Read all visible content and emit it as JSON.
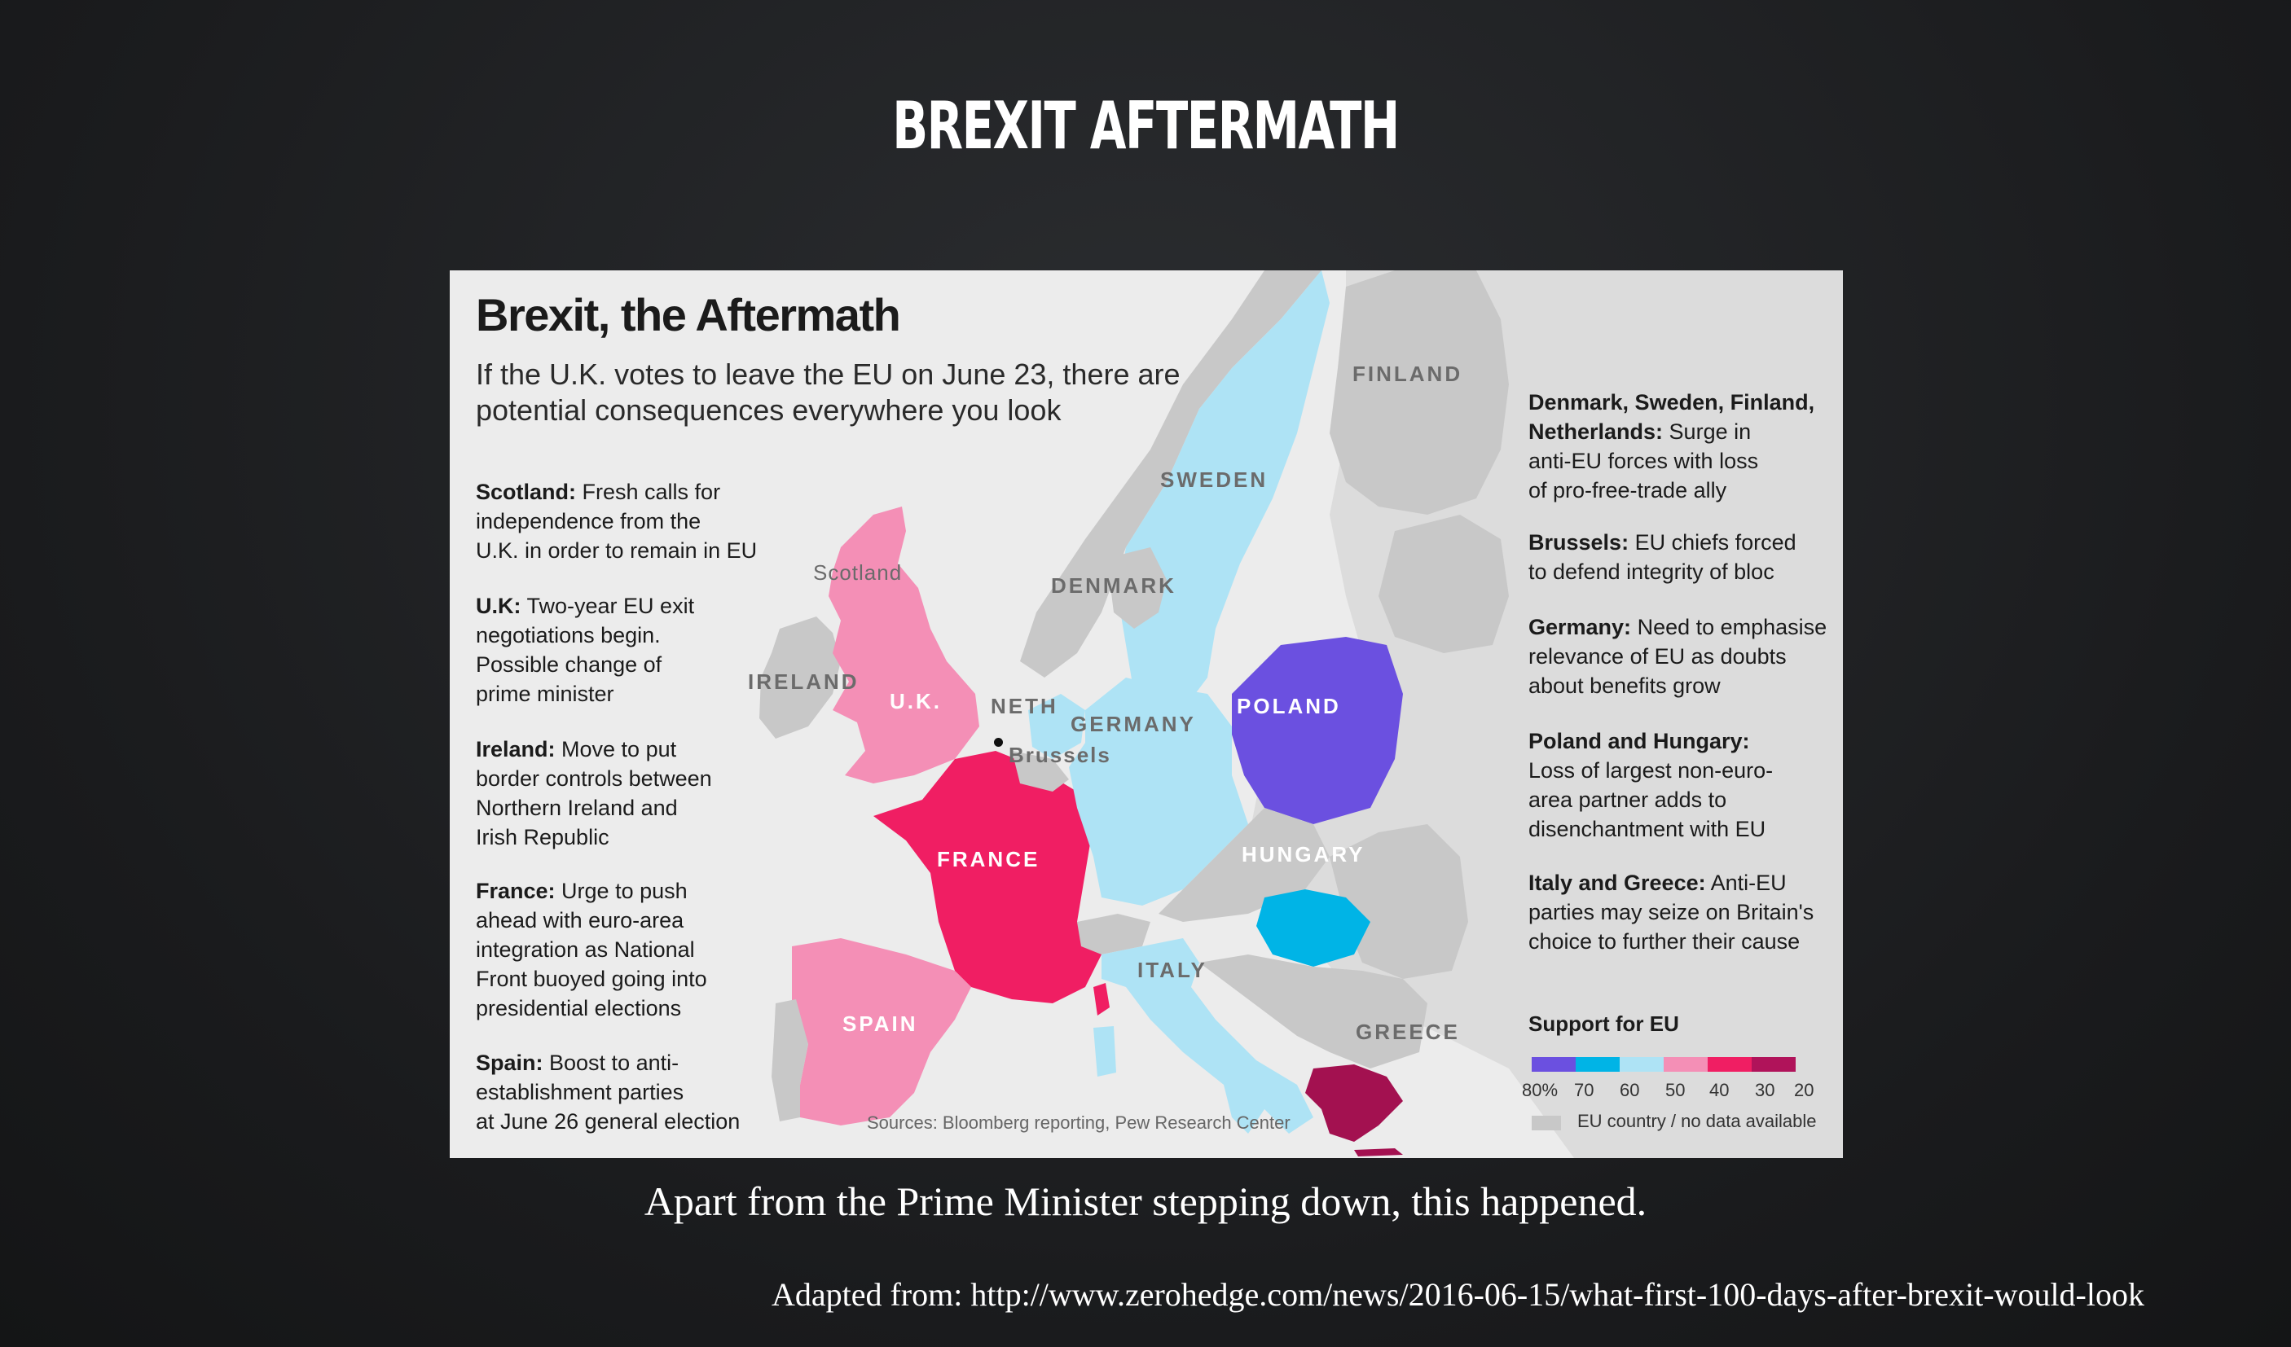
{
  "slide": {
    "title": "BREXIT AFTERMATH",
    "caption": "Apart from the Prime Minister stepping down, this happened.",
    "credit": "Adapted from: http://www.zerohedge.com/news/2016-06-15/what-first-100-days-after-brexit-would-look"
  },
  "infographic": {
    "title": "Brexit, the Aftermath",
    "subtitle": "If the U.K. votes to leave the EU on June 23, there are potential consequences everywhere you look",
    "sources": "Sources: Bloomberg reporting, Pew Research Center",
    "left_notes": [
      {
        "heading": "Scotland:",
        "text": " Fresh calls for\nindependence from the\nU.K. in order to remain in EU"
      },
      {
        "heading": "U.K:",
        "text": " Two-year EU exit\nnegotiations begin.\nPossible change of\nprime minister"
      },
      {
        "heading": "Ireland:",
        "text": " Move to put\nborder controls between\nNorthern Ireland and\nIrish Republic"
      },
      {
        "heading": "France:",
        "text": " Urge to push\nahead with euro-area\nintegration as National\nFront buoyed going into\npresidential elections"
      },
      {
        "heading": "Spain:",
        "text": " Boost to anti-\nestablishment parties\nat June 26 general election"
      }
    ],
    "right_notes": [
      {
        "heading": "Denmark, Sweden, Finland,\nNetherlands:",
        "text": " Surge in\nanti-EU forces with loss\nof pro-free-trade ally"
      },
      {
        "heading": "Brussels:",
        "text": " EU chiefs forced\nto defend integrity of bloc"
      },
      {
        "heading": "Germany:",
        "text": " Need to emphasise\nrelevance of EU as doubts\nabout benefits grow"
      },
      {
        "heading": "Poland and Hungary:",
        "text": "\nLoss of largest non-euro-\narea partner adds to\ndisenchantment with EU"
      },
      {
        "heading": "Italy and Greece:",
        "text": " Anti-EU\nparties may seize on Britain's\nchoice to further their cause"
      }
    ],
    "map_labels": {
      "finland": "FINLAND",
      "sweden": "SWEDEN",
      "denmark": "DENMARK",
      "scotland": "Scotland",
      "ireland": "IRELAND",
      "uk": "U.K.",
      "neth": "NETH",
      "germany": "GERMANY",
      "poland": "POLAND",
      "brussels": "Brussels",
      "france": "FRANCE",
      "hungary": "HUNGARY",
      "italy": "ITALY",
      "spain": "SPAIN",
      "greece": "GREECE"
    },
    "legend": {
      "title": "Support for EU",
      "ticks": [
        "80%",
        "70",
        "60",
        "50",
        "40",
        "30",
        "20"
      ],
      "colors": [
        "#6b50e0",
        "#00b4e6",
        "#aee3f5",
        "#f48fb6",
        "#f01e63",
        "#b0135a"
      ],
      "no_data_label": "EU country / no data available",
      "no_data_color": "#c8c8c8"
    },
    "country_colors": {
      "uk": "#f48fb6",
      "france": "#f01e63",
      "spain": "#f48fb6",
      "greece": "#a31150",
      "poland": "#6b50e0",
      "hungary": "#00b4e6",
      "germany": "#aee3f5",
      "sweden": "#aee3f5",
      "netherlands": "#aee3f5",
      "italy": "#aee3f5",
      "other": "#c8c8c8"
    }
  }
}
